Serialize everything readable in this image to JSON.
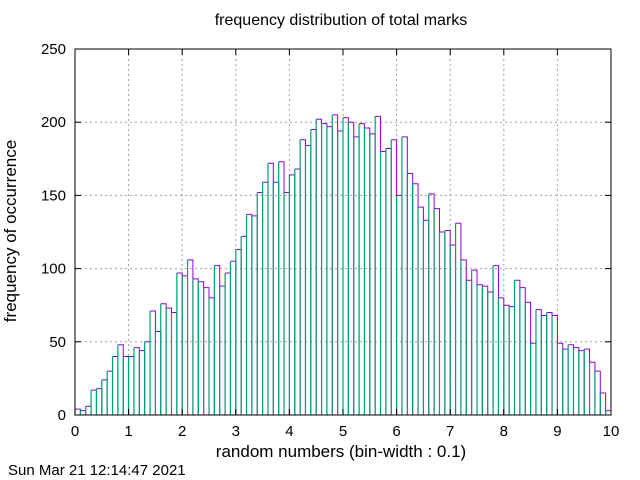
{
  "timestamp": "Sun Mar 21 12:14:47 2021",
  "colors": {
    "bar_fill": "#009e73",
    "bar_outline": "#9400d3",
    "grid": "#a0a0a0",
    "frame": "#000000"
  },
  "chart_data": {
    "type": "bar",
    "title": "frequency distribution of total marks",
    "xlabel": "random numbers (bin-width : 0.1)",
    "ylabel": "frequency of occurrence",
    "xlim": [
      0,
      10
    ],
    "ylim": [
      0,
      250
    ],
    "bin_width": 0.1,
    "x_ticks": [
      "0",
      "1",
      "2",
      "3",
      "4",
      "5",
      "6",
      "7",
      "8",
      "9",
      "10"
    ],
    "y_ticks": [
      "0",
      "50",
      "100",
      "150",
      "200",
      "250"
    ],
    "grid": true,
    "bin_centers": [
      0.05,
      0.15,
      0.25,
      0.35,
      0.45,
      0.55,
      0.65,
      0.75,
      0.85,
      0.95,
      1.05,
      1.15,
      1.25,
      1.35,
      1.45,
      1.55,
      1.65,
      1.75,
      1.85,
      1.95,
      2.05,
      2.15,
      2.25,
      2.35,
      2.45,
      2.55,
      2.65,
      2.75,
      2.85,
      2.95,
      3.05,
      3.15,
      3.25,
      3.35,
      3.45,
      3.55,
      3.65,
      3.75,
      3.85,
      3.95,
      4.05,
      4.15,
      4.25,
      4.35,
      4.45,
      4.55,
      4.65,
      4.75,
      4.85,
      4.95,
      5.05,
      5.15,
      5.25,
      5.35,
      5.45,
      5.55,
      5.65,
      5.75,
      5.85,
      5.95,
      6.05,
      6.15,
      6.25,
      6.35,
      6.45,
      6.55,
      6.65,
      6.75,
      6.85,
      6.95,
      7.05,
      7.15,
      7.25,
      7.35,
      7.45,
      7.55,
      7.65,
      7.75,
      7.85,
      7.95,
      8.05,
      8.15,
      8.25,
      8.35,
      8.45,
      8.55,
      8.65,
      8.75,
      8.85,
      8.95,
      9.05,
      9.15,
      9.25,
      9.35,
      9.45,
      9.55,
      9.65,
      9.75,
      9.85,
      9.95
    ],
    "values": [
      4,
      3,
      6,
      17,
      18,
      24,
      30,
      40,
      48,
      40,
      40,
      46,
      44,
      50,
      71,
      57,
      76,
      73,
      70,
      97,
      95,
      106,
      93,
      91,
      87,
      80,
      102,
      88,
      97,
      105,
      113,
      122,
      137,
      136,
      152,
      159,
      172,
      159,
      173,
      152,
      164,
      168,
      188,
      184,
      195,
      202,
      199,
      197,
      205,
      194,
      203,
      200,
      190,
      199,
      196,
      192,
      204,
      180,
      182,
      188,
      150,
      190,
      165,
      158,
      142,
      133,
      151,
      141,
      125,
      126,
      116,
      131,
      106,
      92,
      99,
      89,
      88,
      84,
      102,
      80,
      75,
      74,
      92,
      87,
      77,
      49,
      72,
      68,
      70,
      68,
      49,
      45,
      48,
      46,
      44,
      45,
      36,
      30,
      15,
      3
    ]
  }
}
